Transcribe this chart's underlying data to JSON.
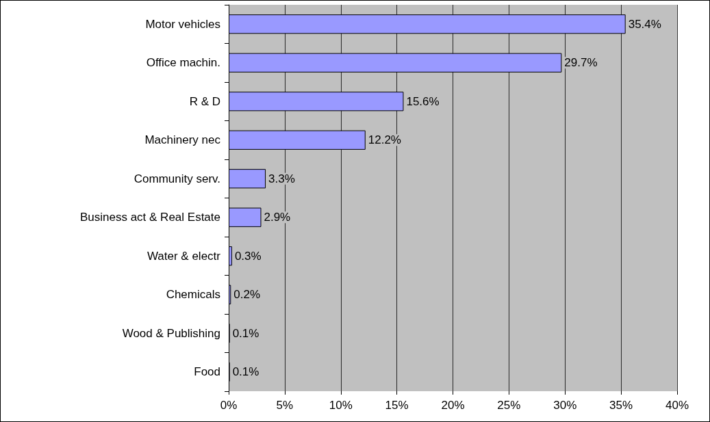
{
  "chart_data": {
    "type": "bar",
    "orientation": "horizontal",
    "categories": [
      "Motor vehicles",
      "Office machin.",
      "R & D",
      "Machinery nec",
      "Community serv.",
      "Business act & Real Estate",
      "Water & electr",
      "Chemicals",
      "Wood & Publishing",
      "Food"
    ],
    "values": [
      35.4,
      29.7,
      15.6,
      12.2,
      3.3,
      2.9,
      0.3,
      0.2,
      0.1,
      0.1
    ],
    "value_labels": [
      "35.4%",
      "29.7%",
      "15.6%",
      "12.2%",
      "3.3%",
      "2.9%",
      "0.3%",
      "0.2%",
      "0.1%",
      "0.1%"
    ],
    "color": "#9999ff",
    "xlim": [
      0,
      40
    ],
    "xticks": [
      {
        "value": 0,
        "label": "0%"
      },
      {
        "value": 5,
        "label": "5%"
      },
      {
        "value": 10,
        "label": "10%"
      },
      {
        "value": 15,
        "label": "15%"
      },
      {
        "value": 20,
        "label": "20%"
      },
      {
        "value": 25,
        "label": "25%"
      },
      {
        "value": 30,
        "label": "30%"
      },
      {
        "value": 35,
        "label": "35%"
      },
      {
        "value": 40,
        "label": "40%"
      }
    ],
    "grid": "x"
  }
}
